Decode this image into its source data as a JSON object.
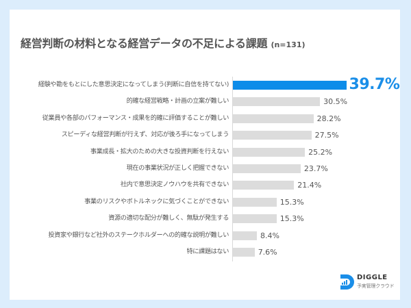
{
  "chart_data": {
    "type": "bar",
    "orientation": "horizontal",
    "title": "経営判断の材料となる経営データの不足による課題",
    "subtitle": "(n=131)",
    "categories": [
      "経験や勘をもとにした意思決定になってしまう(判断に自信を持てない)",
      "的確な経営戦略・計画の立案が難しい",
      "従業員や各部のパフォーマンス・成果を的確に評価することが難しい",
      "スピーディな経営判断が行えず、対応が後ろ手になってしまう",
      "事業成長・拡大のための大きな投資判断を行えない",
      "現在の事業状況が正しく把握できない",
      "社内で意思決定ノウハウを共有できない",
      "事業のリスクやボトルネックに気づくことができない",
      "資源の適切な配分が難しく、無駄が発生する",
      "投資家や銀行など社外のステークホルダーへの的確な説明が難しい",
      "特に課題はない"
    ],
    "values": [
      39.7,
      30.5,
      28.2,
      27.5,
      25.2,
      23.7,
      21.4,
      15.3,
      15.3,
      8.4,
      7.6
    ],
    "value_labels": [
      "39.7%",
      "30.5%",
      "28.2%",
      "27.5%",
      "25.2%",
      "23.7%",
      "21.4%",
      "15.3%",
      "15.3%",
      "8.4%",
      "7.6%"
    ],
    "highlight_index": 0,
    "unit": "%",
    "xlim": [
      0,
      45
    ],
    "grid": false,
    "xlabel": "",
    "ylabel": ""
  },
  "colors": {
    "highlight": "#0d8ce9",
    "bar": "#dcdcdc",
    "background": "#dcedfc"
  },
  "logo": {
    "name": "DIGGLE",
    "tagline": "予実管理クラウド",
    "icon": "diggle-logo-icon"
  }
}
